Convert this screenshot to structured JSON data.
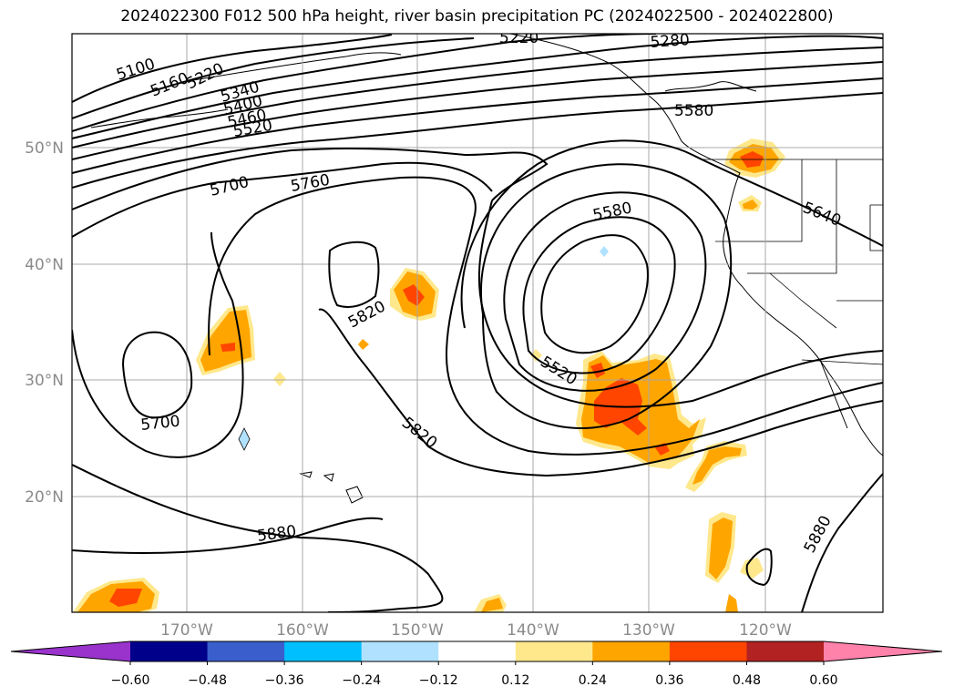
{
  "title": "2024022300 F012 500 hPa height, river basin precipitation PC (2024022500 - 2024022800)",
  "lat_labels": [
    "50°N",
    "40°N",
    "30°N",
    "20°N"
  ],
  "lon_labels": [
    "170°W",
    "160°W",
    "150°W",
    "140°W",
    "130°W",
    "120°W"
  ],
  "contour_labels": [
    "5100",
    "5160",
    "5220",
    "5220",
    "5280",
    "5340",
    "5400",
    "5460",
    "5520",
    "5580",
    "5640",
    "5700",
    "5760",
    "5580",
    "5820",
    "5520",
    "5700",
    "5820",
    "5880",
    "5880"
  ],
  "colorbar": {
    "ticks": [
      "−0.60",
      "−0.48",
      "−0.36",
      "−0.24",
      "−0.12",
      "0.12",
      "0.24",
      "0.36",
      "0.48",
      "0.60"
    ],
    "colors": [
      "#9933cc",
      "#00008b",
      "#3a5fcd",
      "#00bfff",
      "#b0e2ff",
      "#ffffff",
      "#ffe88c",
      "#ffa500",
      "#ff4500",
      "#b22222",
      "#ff82ab"
    ]
  },
  "precip_colors": {
    "light": "#ffe88c",
    "medium": "#ffa500",
    "heavy": "#ff4500",
    "negative": "#b0e2ff"
  }
}
